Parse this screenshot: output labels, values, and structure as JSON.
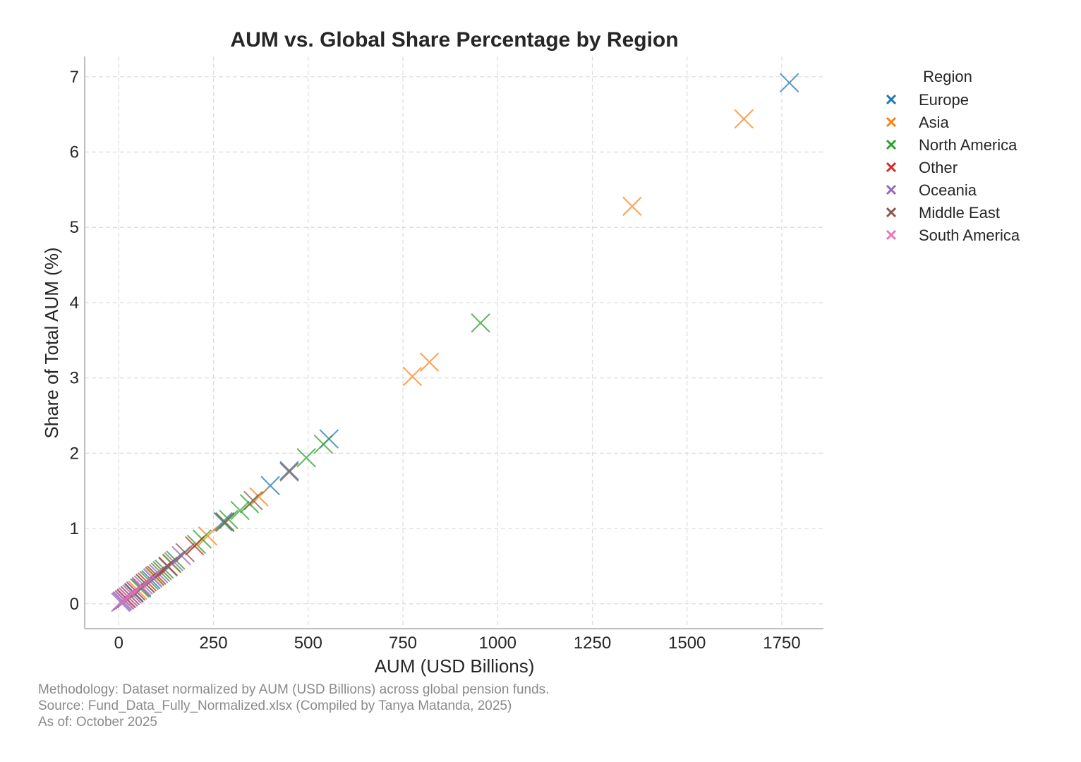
{
  "chart_data": {
    "type": "scatter",
    "title": "AUM vs. Global Share Percentage by Region",
    "xlabel": "AUM (USD Billions)",
    "ylabel": "Share of Total AUM (%)",
    "xlim": [
      -90,
      1860
    ],
    "ylim": [
      -0.33,
      7.27
    ],
    "xticks": [
      0,
      250,
      500,
      750,
      1000,
      1250,
      1500,
      1750
    ],
    "yticks": [
      0,
      1,
      2,
      3,
      4,
      5,
      6,
      7
    ],
    "grid": true,
    "marker": "x",
    "legend": {
      "title": "Region",
      "placement": "outside-right-top"
    },
    "series": [
      {
        "name": "Europe",
        "color": "#1f77b4",
        "points": [
          [
            1770,
            6.92
          ],
          [
            555,
            2.19
          ],
          [
            400,
            1.57
          ],
          [
            450,
            1.77
          ],
          [
            275,
            1.09
          ],
          [
            130,
            0.49
          ],
          [
            85,
            0.32
          ],
          [
            40,
            0.14
          ],
          [
            60,
            0.21
          ],
          [
            20,
            0.07
          ]
        ]
      },
      {
        "name": "Asia",
        "color": "#ff7f0e",
        "points": [
          [
            1650,
            6.44
          ],
          [
            1355,
            5.28
          ],
          [
            820,
            3.21
          ],
          [
            775,
            3.02
          ],
          [
            370,
            1.42
          ],
          [
            235,
            0.9
          ],
          [
            140,
            0.53
          ],
          [
            95,
            0.36
          ],
          [
            50,
            0.18
          ],
          [
            25,
            0.09
          ]
        ]
      },
      {
        "name": "North America",
        "color": "#2ca02c",
        "points": [
          [
            955,
            3.73
          ],
          [
            540,
            2.12
          ],
          [
            495,
            1.94
          ],
          [
            345,
            1.33
          ],
          [
            320,
            1.24
          ],
          [
            290,
            1.12
          ],
          [
            280,
            1.08
          ],
          [
            220,
            0.86
          ],
          [
            205,
            0.79
          ],
          [
            150,
            0.58
          ],
          [
            140,
            0.54
          ],
          [
            120,
            0.46
          ],
          [
            110,
            0.42
          ],
          [
            95,
            0.37
          ],
          [
            80,
            0.31
          ],
          [
            70,
            0.27
          ],
          [
            55,
            0.21
          ],
          [
            40,
            0.15
          ],
          [
            30,
            0.11
          ]
        ]
      },
      {
        "name": "Other",
        "color": "#d62728",
        "points": [
          [
            200,
            0.77
          ],
          [
            130,
            0.5
          ],
          [
            100,
            0.38
          ],
          [
            75,
            0.29
          ],
          [
            60,
            0.23
          ],
          [
            45,
            0.17
          ],
          [
            35,
            0.13
          ],
          [
            25,
            0.09
          ],
          [
            15,
            0.05
          ]
        ]
      },
      {
        "name": "Oceania",
        "color": "#9467bd",
        "points": [
          [
            165,
            0.64
          ],
          [
            145,
            0.56
          ],
          [
            105,
            0.4
          ],
          [
            90,
            0.34
          ],
          [
            65,
            0.25
          ],
          [
            45,
            0.17
          ],
          [
            30,
            0.11
          ],
          [
            20,
            0.07
          ],
          [
            15,
            0.05
          ],
          [
            10,
            0.04
          ],
          [
            8,
            0.03
          ],
          [
            5,
            0.02
          ]
        ]
      },
      {
        "name": "Middle East",
        "color": "#8c564b",
        "points": [
          [
            450,
            1.75
          ],
          [
            355,
            1.37
          ],
          [
            280,
            1.09
          ],
          [
            175,
            0.68
          ],
          [
            115,
            0.44
          ],
          [
            70,
            0.27
          ],
          [
            40,
            0.15
          ],
          [
            20,
            0.07
          ]
        ]
      },
      {
        "name": "South America",
        "color": "#e377c2",
        "points": [
          [
            90,
            0.35
          ],
          [
            60,
            0.23
          ],
          [
            35,
            0.13
          ],
          [
            25,
            0.09
          ],
          [
            15,
            0.06
          ]
        ]
      }
    ]
  },
  "footnote": {
    "methodology": "Methodology: Dataset normalized by AUM (USD Billions) across global pension funds.",
    "source": "Source: Fund_Data_Fully_Normalized.xlsx (Compiled by Tanya Matanda, 2025)",
    "as_of": "As of: October 2025"
  }
}
